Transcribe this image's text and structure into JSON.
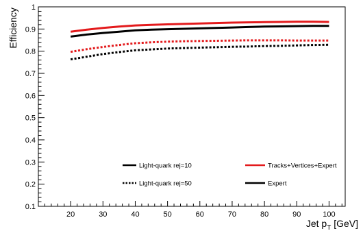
{
  "chart_data": {
    "type": "line",
    "title": "",
    "xlabel": {
      "prefix": "Jet p",
      "subscript": "T",
      "suffix": " [GeV]"
    },
    "ylabel": "Efficiency",
    "xlim": [
      10,
      105
    ],
    "ylim": [
      0.1,
      1.0
    ],
    "xticks": [
      20,
      30,
      40,
      50,
      60,
      70,
      80,
      90,
      100
    ],
    "yticks": [
      0.1,
      0.2,
      0.3,
      0.4,
      0.5,
      0.6,
      0.7,
      0.8,
      0.9,
      1.0
    ],
    "ytick_labels": [
      "0.1",
      "0.2",
      "0.3",
      "0.4",
      "0.5",
      "0.6",
      "0.7",
      "0.8",
      "0.9",
      "1"
    ],
    "grid": false,
    "x": [
      20,
      25,
      30,
      35,
      40,
      45,
      50,
      55,
      60,
      65,
      70,
      75,
      80,
      85,
      90,
      95,
      100
    ],
    "series": [
      {
        "name": "Tracks+Vertices+Expert",
        "rejection": "Light-quark rej=10",
        "color": "#e31a1c",
        "dash": "solid",
        "values": [
          0.888,
          0.897,
          0.905,
          0.911,
          0.916,
          0.919,
          0.921,
          0.923,
          0.925,
          0.927,
          0.929,
          0.93,
          0.931,
          0.932,
          0.933,
          0.933,
          0.932
        ]
      },
      {
        "name": "Expert",
        "rejection": "Light-quark rej=10",
        "color": "#000000",
        "dash": "solid",
        "values": [
          0.866,
          0.875,
          0.882,
          0.888,
          0.894,
          0.897,
          0.899,
          0.901,
          0.903,
          0.905,
          0.907,
          0.909,
          0.911,
          0.912,
          0.913,
          0.914,
          0.914
        ]
      },
      {
        "name": "Tracks+Vertices+Expert",
        "rejection": "Light-quark rej=50",
        "color": "#e31a1c",
        "dash": "dotted",
        "values": [
          0.797,
          0.809,
          0.819,
          0.828,
          0.836,
          0.84,
          0.843,
          0.845,
          0.846,
          0.847,
          0.848,
          0.849,
          0.849,
          0.849,
          0.848,
          0.848,
          0.848
        ]
      },
      {
        "name": "Expert",
        "rejection": "Light-quark rej=50",
        "color": "#000000",
        "dash": "dotted",
        "values": [
          0.763,
          0.775,
          0.787,
          0.796,
          0.804,
          0.808,
          0.812,
          0.814,
          0.816,
          0.818,
          0.82,
          0.821,
          0.823,
          0.824,
          0.826,
          0.828,
          0.829
        ]
      }
    ],
    "legend": {
      "placement": "lower-center",
      "entries": [
        {
          "label": "Light-quark rej=10",
          "color": "#000000",
          "dash": "solid"
        },
        {
          "label": "Tracks+Vertices+Expert",
          "color": "#e31a1c",
          "dash": "solid"
        },
        {
          "label": "Light-quark rej=50",
          "color": "#000000",
          "dash": "dotted"
        },
        {
          "label": "Expert",
          "color": "#000000",
          "dash": "solid"
        }
      ]
    }
  }
}
